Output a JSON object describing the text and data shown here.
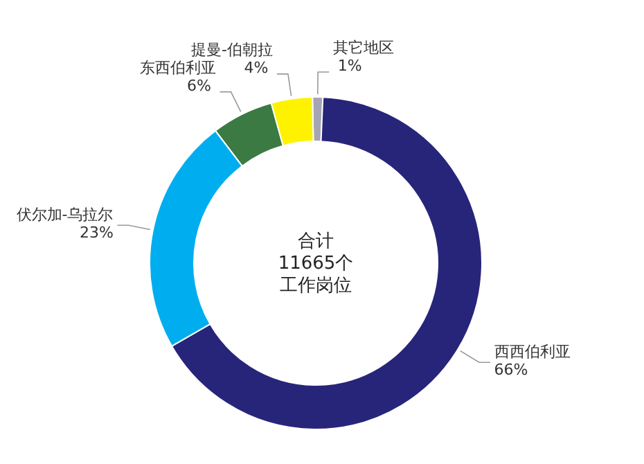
{
  "chart_data": {
    "type": "donut",
    "categories": [
      "其它地区",
      "西西伯利亚",
      "伏尔加-乌拉尔",
      "东西伯利亚",
      "提曼-伯朝拉"
    ],
    "values": [
      1,
      66,
      23,
      6,
      4
    ],
    "value_labels": [
      "1%",
      "66%",
      "23%",
      "6%",
      "4%"
    ],
    "colors": [
      "#a5a5b5",
      "#27257a",
      "#00aeef",
      "#3b7a43",
      "#fff200"
    ],
    "annotations": [
      "合计",
      "11665个",
      "工作岗位"
    ]
  }
}
